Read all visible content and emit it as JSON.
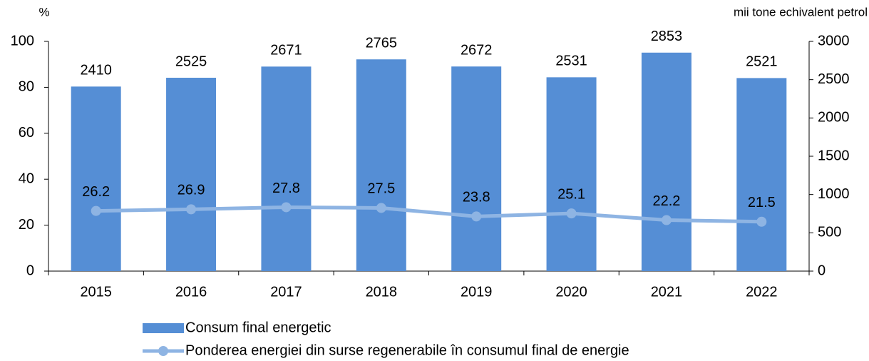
{
  "chart_data": {
    "type": "combo",
    "ylabel": "%",
    "y2label": "mii tone echivalent petrol",
    "categories": [
      "2015",
      "2016",
      "2017",
      "2018",
      "2019",
      "2020",
      "2021",
      "2022"
    ],
    "series": [
      {
        "name": "Consum final energetic",
        "type": "bar",
        "axis": "y2",
        "color": "#558ed5",
        "values": [
          2410,
          2525,
          2671,
          2765,
          2672,
          2531,
          2853,
          2521
        ]
      },
      {
        "name": "Ponderea energiei din surse regenerabile în consumul final de energie",
        "type": "line",
        "color": "#8eb4e3",
        "values": [
          26.2,
          26.9,
          27.8,
          27.5,
          23.8,
          25.1,
          22.2,
          21.5
        ]
      }
    ],
    "ylim": [
      0,
      100
    ],
    "yticks": [
      0,
      20,
      40,
      60,
      80,
      100
    ],
    "y2lim": [
      0,
      3000
    ],
    "y2ticks": [
      0,
      500,
      1000,
      1500,
      2000,
      2500,
      3000
    ]
  }
}
